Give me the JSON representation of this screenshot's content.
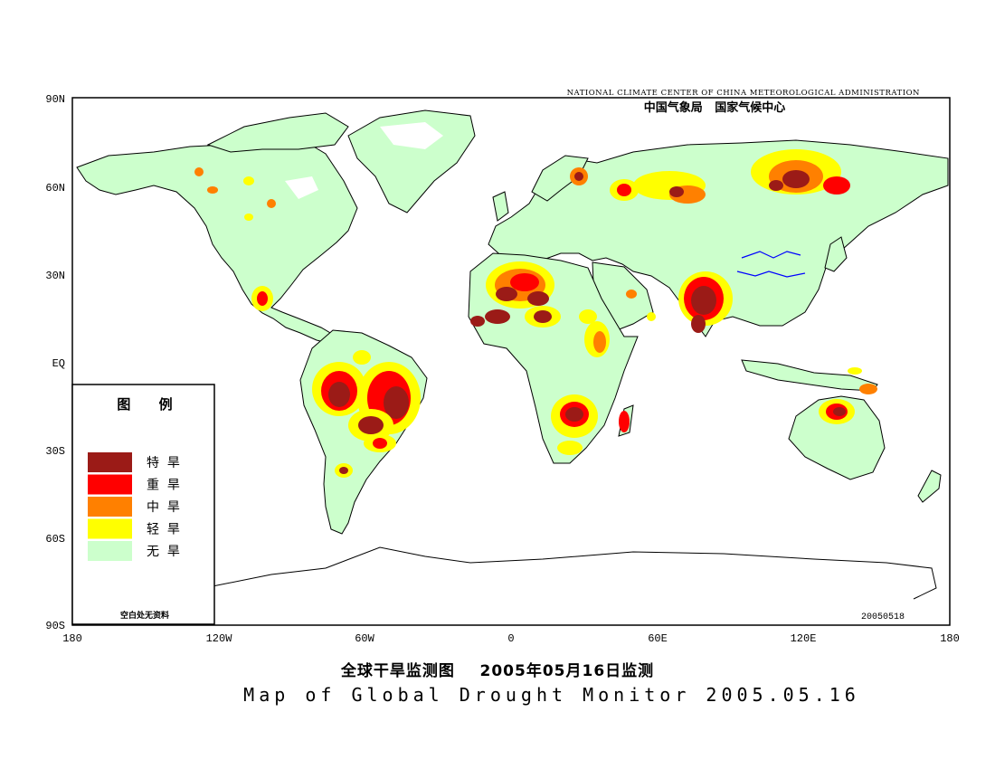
{
  "header": {
    "agency_en": "NATIONAL CLIMATE CENTER OF CHINA METEOROLOGICAL ADMINISTRATION",
    "agency_zh": "中国气象局   国家气候中心"
  },
  "axes": {
    "lat_labels": [
      "90N",
      "60N",
      "30N",
      "EQ",
      "30S",
      "60S",
      "90S"
    ],
    "lon_labels": [
      "180",
      "120W",
      "60W",
      "0",
      "60E",
      "120E",
      "180"
    ]
  },
  "legend": {
    "title": "图      例",
    "items": [
      {
        "label": "特  旱",
        "color": "#9b1b17"
      },
      {
        "label": "重  旱",
        "color": "#ff0000"
      },
      {
        "label": "中  旱",
        "color": "#ff8000"
      },
      {
        "label": "轻  旱",
        "color": "#ffff00"
      },
      {
        "label": "无  旱",
        "color": "#ccffcc"
      }
    ],
    "footnote": "空白处无资料"
  },
  "issue_code": "20050518",
  "title_zh": "全球干旱监测图    2005年05月16日监测",
  "title_en": "Map of Global Drought Monitor 2005.05.16",
  "colors": {
    "land": "#ccffcc",
    "border": "#000000",
    "river": "#0000ff"
  }
}
